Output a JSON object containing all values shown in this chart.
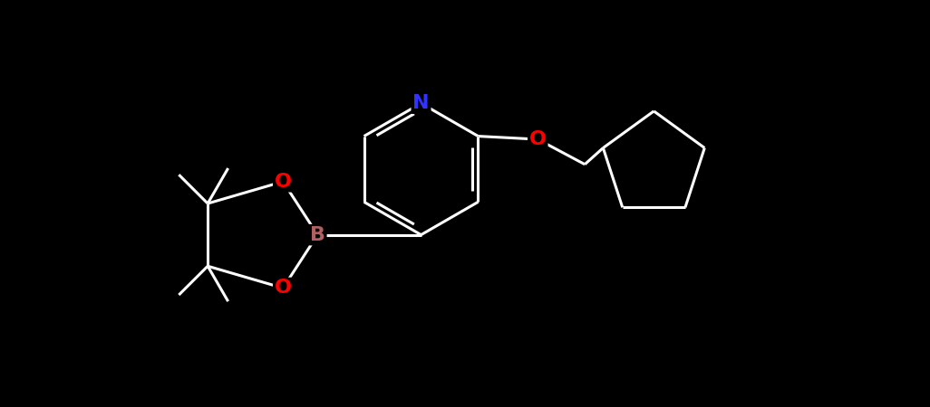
{
  "background_color": "#000000",
  "atom_colors": {
    "C": "#ffffff",
    "N": "#3333ff",
    "O": "#ff0000",
    "B": "#b06060"
  },
  "bond_color": "#ffffff",
  "figsize": [
    10.26,
    4.5
  ],
  "dpi": 100,
  "lw": 2.2,
  "font_size_atom": 16,
  "xlim": [
    -5.5,
    7.5
  ],
  "ylim": [
    -3.5,
    3.0
  ]
}
